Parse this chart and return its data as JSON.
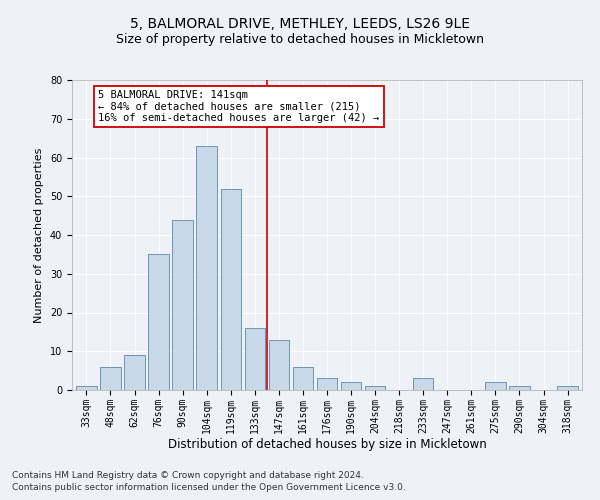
{
  "title1": "5, BALMORAL DRIVE, METHLEY, LEEDS, LS26 9LE",
  "title2": "Size of property relative to detached houses in Mickletown",
  "xlabel": "Distribution of detached houses by size in Mickletown",
  "ylabel": "Number of detached properties",
  "categories": [
    "33sqm",
    "48sqm",
    "62sqm",
    "76sqm",
    "90sqm",
    "104sqm",
    "119sqm",
    "133sqm",
    "147sqm",
    "161sqm",
    "176sqm",
    "190sqm",
    "204sqm",
    "218sqm",
    "233sqm",
    "247sqm",
    "261sqm",
    "275sqm",
    "290sqm",
    "304sqm",
    "318sqm"
  ],
  "values": [
    1,
    6,
    9,
    35,
    44,
    63,
    52,
    16,
    13,
    6,
    3,
    2,
    1,
    0,
    3,
    0,
    0,
    2,
    1,
    0,
    1
  ],
  "bar_color": "#c8d8e8",
  "bar_edge_color": "#5a8ab0",
  "reference_line_color": "#cc0000",
  "annotation_text": "5 BALMORAL DRIVE: 141sqm\n← 84% of detached houses are smaller (215)\n16% of semi-detached houses are larger (42) →",
  "annotation_box_color": "#ffffff",
  "annotation_box_edge": "#cc0000",
  "ylim": [
    0,
    80
  ],
  "yticks": [
    0,
    10,
    20,
    30,
    40,
    50,
    60,
    70,
    80
  ],
  "footnote1": "Contains HM Land Registry data © Crown copyright and database right 2024.",
  "footnote2": "Contains public sector information licensed under the Open Government Licence v3.0.",
  "background_color": "#eef2f7",
  "grid_color": "#ffffff",
  "title1_fontsize": 10,
  "title2_fontsize": 9,
  "xlabel_fontsize": 8.5,
  "ylabel_fontsize": 8,
  "tick_fontsize": 7,
  "footnote_fontsize": 6.5,
  "annotation_fontsize": 7.5
}
